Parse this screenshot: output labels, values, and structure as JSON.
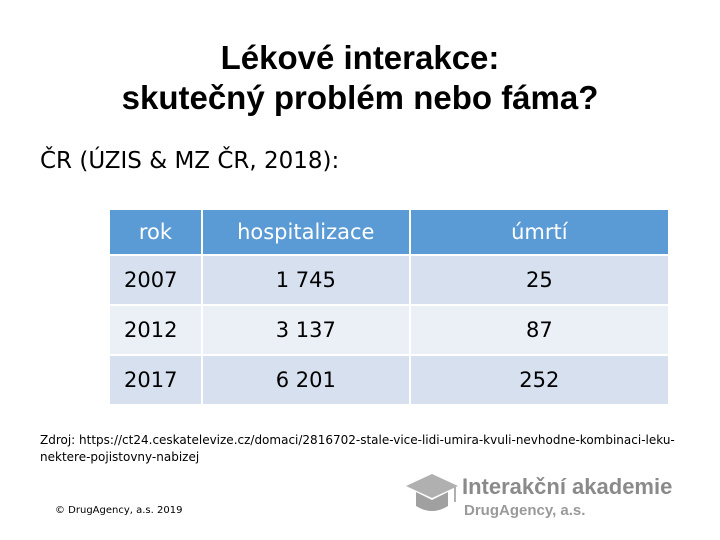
{
  "title": [
    "Lékové interakce:",
    "skutečný problém nebo fáma?"
  ],
  "subtitle": "ČR (ÚZIS & MZ ČR, 2018):",
  "table": {
    "header": [
      "rok",
      "hospitalizace",
      "úmrtí"
    ],
    "rows": [
      [
        "2007",
        "1 745",
        "25"
      ],
      [
        "2012",
        "3 137",
        "87"
      ],
      [
        "2017",
        "6 201",
        "252"
      ]
    ]
  },
  "source": "Zdroj: https://ct24.ceskatelevize.cz/domaci/2816702-stale-vice-lidi-umira-kvuli-nevhodne-kombinaci-leku-nektere-pojistovny-nabizej",
  "footer": "© DrugAgency, a.s. 2019",
  "logo": {
    "name": "Interakční akademie",
    "company": "DrugAgency, a.s."
  }
}
